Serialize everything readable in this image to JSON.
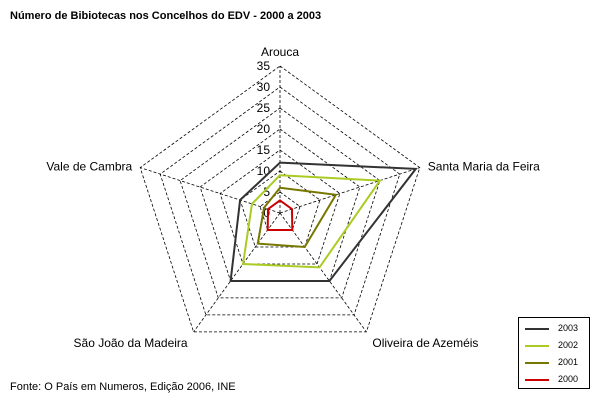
{
  "chart_data": {
    "type": "radar",
    "title": "Número de Bibiotecas nos Concelhos do EDV - 2000 a 2003",
    "axes": [
      "Arouca",
      "Santa Maria da Feira",
      "Oliveira de Azeméis",
      "São João da Madeira",
      "Vale de Cambra"
    ],
    "radial_ticks": [
      "0",
      "5",
      "10",
      "15",
      "20",
      "25",
      "30",
      "35"
    ],
    "rmax": 35,
    "gridlines": "dashed",
    "legend_position": "bottom-right",
    "series": [
      {
        "name": "2003",
        "color": "#333333",
        "values": [
          12,
          34,
          20,
          20,
          10
        ]
      },
      {
        "name": "2002",
        "color": "#aacc22",
        "values": [
          9,
          25,
          16,
          15,
          7
        ]
      },
      {
        "name": "2001",
        "color": "#777700",
        "values": [
          6,
          14,
          10,
          9,
          4
        ]
      },
      {
        "name": "2000",
        "color": "#cc0000",
        "values": [
          3,
          3,
          5,
          5,
          3
        ]
      }
    ]
  },
  "source_note": "Fonte: O País em Numeros, Edição 2006, INE"
}
